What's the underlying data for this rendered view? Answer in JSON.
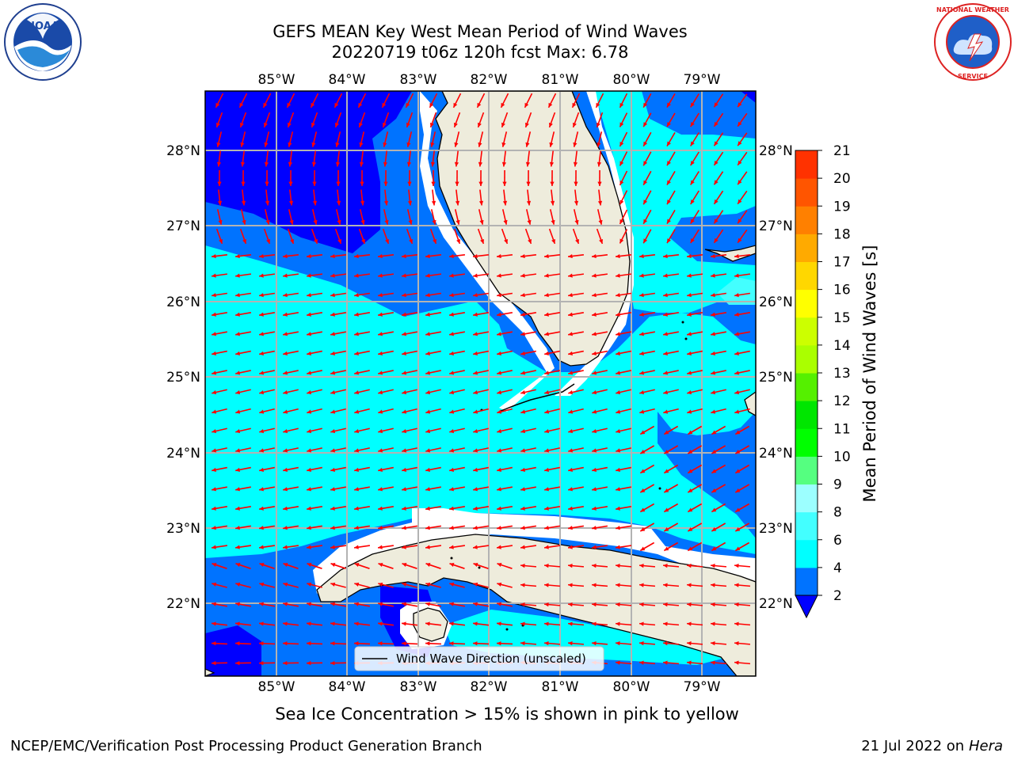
{
  "header": {
    "title_line1": "GEFS MEAN Key West Mean Period of Wind Waves",
    "title_line2": "20220719 t06z 120h fcst   Max: 6.78"
  },
  "logos": {
    "left": "NOAA",
    "right": "NATIONAL WEATHER SERVICE"
  },
  "map": {
    "lon_labels": [
      "85°W",
      "84°W",
      "83°W",
      "82°W",
      "81°W",
      "80°W",
      "79°W"
    ],
    "lat_labels": [
      "28°N",
      "27°N",
      "26°N",
      "25°N",
      "24°N",
      "23°N",
      "22°N"
    ],
    "legend_label": "Wind Wave Direction (unscaled)",
    "colors": {
      "land": "#eeecdc",
      "no_data": "#ffffff",
      "arrow": "#ff0000",
      "gridline": "#b3b3b3",
      "coast": "#000000"
    }
  },
  "colorbar": {
    "label": "Mean Period of Wind Waves [s]",
    "ticks": [
      "2",
      "4",
      "6",
      "8",
      "9",
      "10",
      "11",
      "12",
      "13",
      "14",
      "15",
      "16",
      "17",
      "18",
      "19",
      "20",
      "21"
    ],
    "colors": [
      "#0000ff",
      "#0073ff",
      "#00ffff",
      "#43ffff",
      "#9cffff",
      "#55ff80",
      "#00ff00",
      "#00e600",
      "#55f000",
      "#aaff00",
      "#ccff00",
      "#ffff00",
      "#ffd700",
      "#ffaa00",
      "#ff8000",
      "#ff5500",
      "#ff3200",
      "#ff0000"
    ]
  },
  "chart_data": {
    "type": "heatmap",
    "title": "GEFS MEAN Key West Mean Period of Wind Waves",
    "subtitle": "20220719 t06z 120h fcst   Max: 6.78",
    "x_range": [
      "86°W",
      "78.3°W"
    ],
    "y_range": [
      "21°N",
      "28.8°N"
    ],
    "color_levels_s": [
      2,
      4,
      6,
      8,
      9,
      10,
      11,
      12,
      13,
      14,
      15,
      16,
      17,
      18,
      19,
      20,
      21
    ],
    "max_value_s": 6.78
  },
  "footer": {
    "note": "Sea Ice Concentration > 15% is shown in pink to yellow",
    "credit": "NCEP/EMC/Verification Post Processing Product Generation Branch",
    "date_prefix": "21 Jul 2022 on ",
    "host": "Hera"
  }
}
